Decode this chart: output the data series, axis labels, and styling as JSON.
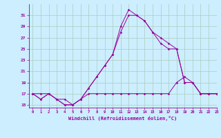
{
  "xlabel": "Windchill (Refroidissement éolien,°C)",
  "background_color": "#cceeff",
  "grid_color": "#aaccbb",
  "line_color": "#990099",
  "x_hours": [
    0,
    1,
    2,
    3,
    4,
    5,
    6,
    7,
    8,
    9,
    10,
    11,
    12,
    13,
    14,
    15,
    16,
    17,
    18,
    19,
    20,
    21,
    22,
    23
  ],
  "line1": [
    17,
    16,
    17,
    16,
    15,
    15,
    16,
    18,
    20,
    22,
    24,
    29,
    32,
    31,
    30,
    28,
    27,
    26,
    25,
    19,
    19,
    17,
    17,
    17
  ],
  "line2": [
    17,
    16,
    17,
    16,
    15,
    15,
    16,
    18,
    20,
    22,
    24,
    28,
    31,
    31,
    30,
    28,
    26,
    25,
    25,
    19,
    19,
    17,
    17,
    17
  ],
  "line3": [
    17,
    17,
    17,
    16,
    16,
    15,
    16,
    17,
    17,
    17,
    17,
    17,
    17,
    17,
    17,
    17,
    17,
    17,
    19,
    20,
    19,
    17,
    17,
    17
  ],
  "ylim": [
    14.5,
    33
  ],
  "yticks": [
    15,
    17,
    19,
    21,
    23,
    25,
    27,
    29,
    31
  ],
  "xlim": [
    -0.5,
    23
  ]
}
